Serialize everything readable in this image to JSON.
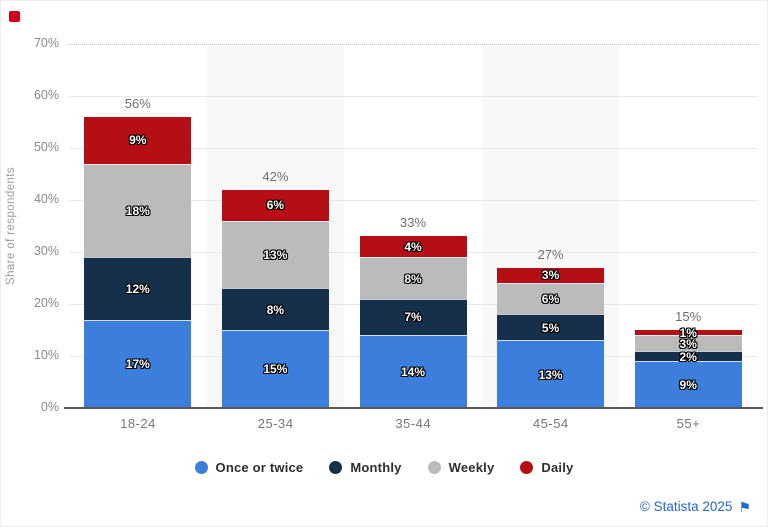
{
  "header": {
    "brand_marker_icon": "red-square-marker",
    "brand_marker_color": "#d0021b"
  },
  "chart_data": {
    "type": "bar",
    "stacked": true,
    "title": "",
    "ylabel": "Share of respondents",
    "xlabel": "",
    "categories": [
      "18-24",
      "25-34",
      "35-44",
      "45-54",
      "55+"
    ],
    "series": [
      {
        "name": "Once or twice",
        "color": "#3b7edc",
        "values": [
          17,
          15,
          14,
          13,
          9
        ]
      },
      {
        "name": "Monthly",
        "color": "#16304b",
        "values": [
          12,
          8,
          7,
          5,
          2
        ]
      },
      {
        "name": "Weekly",
        "color": "#bbbbbb",
        "values": [
          18,
          13,
          8,
          6,
          3
        ]
      },
      {
        "name": "Daily",
        "color": "#b50e14",
        "values": [
          9,
          6,
          4,
          3,
          1
        ]
      }
    ],
    "totals": [
      56,
      42,
      33,
      27,
      15
    ],
    "total_labels": [
      "56%",
      "42%",
      "33%",
      "27%",
      "15%"
    ],
    "yticks": [
      70,
      60,
      50,
      40,
      30,
      20,
      10,
      0
    ],
    "ytick_labels": [
      "70%",
      "60%",
      "50%",
      "40%",
      "30%",
      "20%",
      "10%",
      "0%"
    ],
    "ylim": [
      0,
      70
    ],
    "grid": true,
    "band_color": "#f8f8f8",
    "legend_position": "bottom",
    "legend_items": [
      "Once or twice",
      "Monthly",
      "Weekly",
      "Daily"
    ]
  },
  "footer": {
    "credit": "© Statista 2025",
    "flag_icon": "⚑"
  }
}
